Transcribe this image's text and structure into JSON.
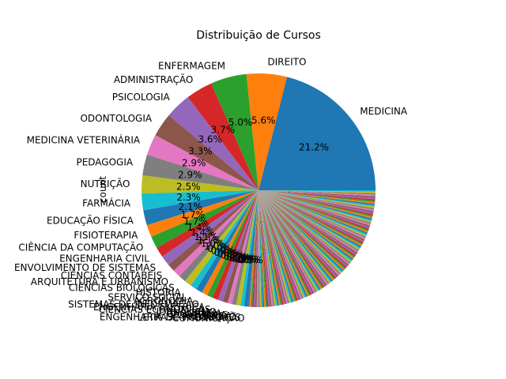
{
  "chart_data": {
    "type": "pie",
    "title": "Distribuição de Cursos",
    "ylabel": "count",
    "startangle_deg": 0,
    "direction": "counterclockwise",
    "slices": [
      {
        "label": "MEDICINA",
        "percent": 21.2,
        "color": "#1f77b4"
      },
      {
        "label": "DIREITO",
        "percent": 5.6,
        "color": "#ff7f0e"
      },
      {
        "label": "ENFERMAGEM",
        "percent": 5.0,
        "color": "#2ca02c"
      },
      {
        "label": "ADMINISTRAÇÃO",
        "percent": 3.7,
        "color": "#d62728"
      },
      {
        "label": "PSICOLOGIA",
        "percent": 3.6,
        "color": "#9467bd"
      },
      {
        "label": "ODONTOLOGIA",
        "percent": 3.3,
        "color": "#8c564b"
      },
      {
        "label": "MEDICINA VETERINÁRIA",
        "percent": 2.9,
        "color": "#e377c2"
      },
      {
        "label": "PEDAGOGIA",
        "percent": 2.9,
        "color": "#7f7f7f"
      },
      {
        "label": "NUTRIÇÃO",
        "percent": 2.5,
        "color": "#bcbd22"
      },
      {
        "label": "FARMÁCIA",
        "percent": 2.3,
        "color": "#17becf"
      },
      {
        "label": "EDUCAÇÃO FÍSICA",
        "percent": 2.1,
        "color": "#1f77b4"
      },
      {
        "label": "FISIOTERAPIA",
        "percent": 1.7,
        "color": "#ff7f0e"
      },
      {
        "label": "CIÊNCIA DA COMPUTAÇÃO",
        "percent": 1.7,
        "color": "#2ca02c"
      },
      {
        "label": "ENGENHARIA CIVIL",
        "percent": 1.4,
        "color": "#d62728"
      },
      {
        "label": "ENVOLVIMENTO DE SISTEMAS",
        "percent": 1.4,
        "color": "#9467bd"
      },
      {
        "label": "CIÊNCIAS CONTÁBEIS",
        "percent": 1.1,
        "color": "#8c564b"
      },
      {
        "label": "ARQUITETURA E URBANISMO",
        "percent": 1.1,
        "color": "#e377c2"
      },
      {
        "label": "CIÊNCIAS BIOLÓGICAS",
        "percent": 1.0,
        "color": "#7f7f7f"
      },
      {
        "label": "HISTÓRIA",
        "percent": 1.0,
        "color": "#bcbd22"
      },
      {
        "label": "SERVIÇO SOCIAL",
        "percent": 0.9,
        "color": "#17becf"
      },
      {
        "label": "AGRONOMIA",
        "percent": 0.9,
        "color": "#1f77b4"
      },
      {
        "label": "SISTEMAS DE INFORMAÇÃO",
        "percent": 0.8,
        "color": "#ff7f0e"
      },
      {
        "label": "ENGENHARIA ELÉTRICA",
        "percent": 0.8,
        "color": "#2ca02c"
      },
      {
        "label": "CIÊNCIAS ECONÔMICAS",
        "percent": 0.8,
        "color": "#d62728"
      },
      {
        "label": "JORNALISMO",
        "percent": 0.7,
        "color": "#9467bd"
      },
      {
        "label": "GEOGRAFIA",
        "percent": 0.7,
        "color": "#8c564b"
      },
      {
        "label": "ZOOTECNIA",
        "percent": 0.6,
        "color": "#e377c2"
      },
      {
        "label": "QUÍMICA",
        "percent": 0.6,
        "color": "#7f7f7f"
      },
      {
        "label": "ENGENHARIA DE PRODUÇÃO",
        "percent": 0.6,
        "color": "#bcbd22"
      },
      {
        "label": "LETRAS - PORTUGUÊS",
        "percent": 0.5,
        "color": "#17becf"
      },
      {
        "label": "COMUNICAÇÃO",
        "percent": 0.5,
        "color": "#1f77b4"
      }
    ],
    "remaining_small_slices_percent": 26.6,
    "remaining_palette": [
      "#1f77b4",
      "#ff7f0e",
      "#2ca02c",
      "#d62728",
      "#9467bd",
      "#8c564b",
      "#e377c2",
      "#7f7f7f",
      "#bcbd22",
      "#17becf"
    ]
  }
}
